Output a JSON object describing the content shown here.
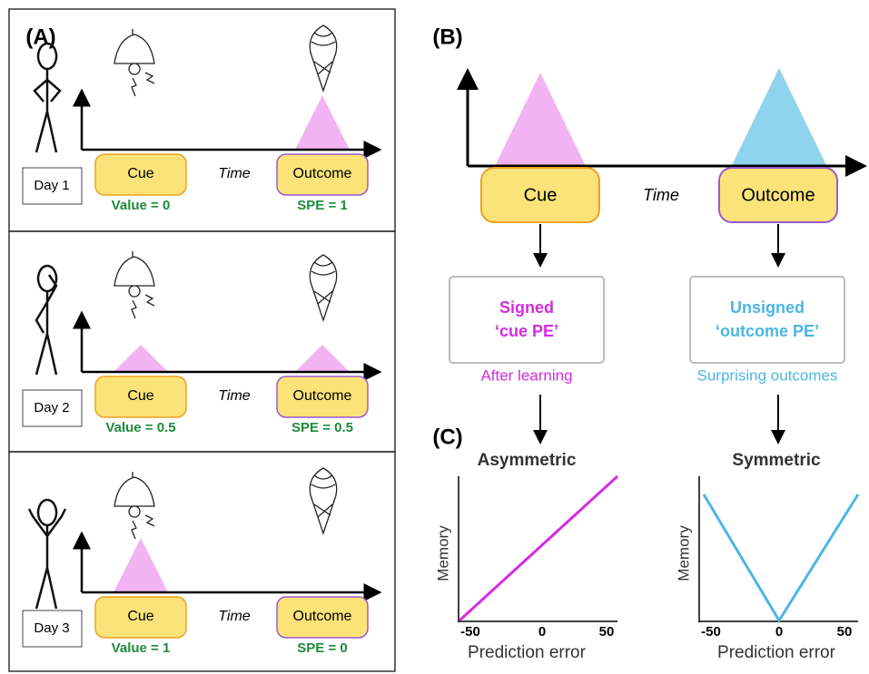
{
  "panel_a": {
    "label": "(A)",
    "cue": "Cue",
    "time": "Time",
    "outcome": "Outcome",
    "rows": [
      {
        "day": "Day 1",
        "cue_value": "Value = 0",
        "outcome_value": "SPE = 1"
      },
      {
        "day": "Day 2",
        "cue_value": "Value = 0.5",
        "outcome_value": "SPE = 0.5"
      },
      {
        "day": "Day 3",
        "cue_value": "Value = 1",
        "outcome_value": "SPE = 0"
      }
    ]
  },
  "panel_b": {
    "label": "(B)",
    "cue": "Cue",
    "time": "Time",
    "outcome": "Outcome",
    "left_box": [
      "Signed",
      "‘cue PE’"
    ],
    "left_caption": "After learning",
    "right_box": [
      "Unsigned",
      "‘outcome PE’"
    ],
    "right_caption": "Surprising outcomes"
  },
  "panel_c": {
    "label": "(C)",
    "plots": [
      {
        "title": "Asymmetric",
        "y_label": "Memory",
        "x_label": "Prediction error",
        "ticks": [
          "-50",
          "0",
          "50"
        ]
      },
      {
        "title": "Symmetric",
        "y_label": "Memory",
        "x_label": "Prediction error",
        "ticks": [
          "-50",
          "0",
          "50"
        ]
      }
    ]
  }
}
